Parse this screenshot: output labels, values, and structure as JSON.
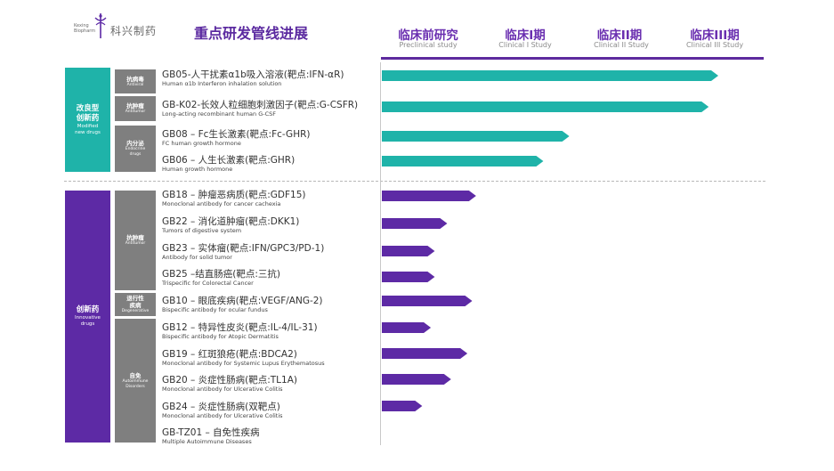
{
  "header": {
    "logo_en_line1": "Kexing",
    "logo_en_line2": "Biopharm",
    "logo_cn": "科兴制药",
    "title": "重点研发管线进展"
  },
  "stages": [
    {
      "cn": "临床前研究",
      "en": "Preclinical study"
    },
    {
      "cn": "临床I期",
      "en": "Clinical I Study"
    },
    {
      "cn": "临床II期",
      "en": "Clinical II Study"
    },
    {
      "cn": "临床III期",
      "en": "Clinical III Study"
    }
  ],
  "groups": {
    "modified": {
      "cn_line1": "改良型",
      "cn_line2": "创新药",
      "en_line1": "Modified",
      "en_line2": "new drugs"
    },
    "innovative": {
      "cn": "创新药",
      "en_line1": "Innovative",
      "en_line2": "drugs"
    }
  },
  "subgroups": {
    "antiviral": {
      "cn": "抗病毒",
      "en": "Antiviral"
    },
    "antitumor1": {
      "cn": "抗肿瘤",
      "en": "Antitumor"
    },
    "endocrine": {
      "cn": "内分泌",
      "en_line1": "Endocrine",
      "en_line2": "drugs"
    },
    "antitumor2": {
      "cn": "抗肿瘤",
      "en": "Antitumor"
    },
    "degenerative": {
      "cn_line1": "退行性",
      "cn_line2": "疾病",
      "en": "Degenerative"
    },
    "autoimmune": {
      "cn": "自免",
      "en_line1": "Autoimmune",
      "en_line2": "Disorders"
    }
  },
  "colors": {
    "modified": "#1fb3a9",
    "innovative": "#5d2aa5"
  },
  "chart_data": {
    "type": "bar",
    "orientation": "horizontal",
    "stages": [
      "临床前研究",
      "临床I期",
      "临床II期",
      "临床III期"
    ],
    "note": "values are pipeline progress in stage units (0 = start of preclinical, 4 = end of Clinical III)",
    "items": [
      {
        "name": "GB05-人干扰素α1b吸入溶液(靶点:IFN-αR)",
        "en": "Human α1b Interferon inhalation solution",
        "group": "modified",
        "progress": 3.5
      },
      {
        "name": "GB-K02-长效人粒细胞刺激因子(靶点:G-CSFR)",
        "en": "Long-acting  recombinant human G-CSF",
        "group": "modified",
        "progress": 3.4
      },
      {
        "name": "GB08 – Fc生长激素(靶点:Fc-GHR)",
        "en": "FC human growth hormone",
        "group": "modified",
        "progress": 1.95
      },
      {
        "name": "GB06 – 人生长激素(靶点:GHR)",
        "en": "Human growth hormone",
        "group": "modified",
        "progress": 1.68
      },
      {
        "name": "GB18 – 肿瘤恶病质(靶点:GDF15)",
        "en": "Monoclonal antibody for cancer cachexia",
        "group": "innovative",
        "progress": 0.98
      },
      {
        "name": "GB22 – 消化道肿瘤(靶点:DKK1)",
        "en": "Tumors of digestive system",
        "group": "innovative",
        "progress": 0.68
      },
      {
        "name": "GB23 – 实体瘤(靶点:IFN/GPC3/PD-1)",
        "en": "Antibody for solid tumor",
        "group": "innovative",
        "progress": 0.55
      },
      {
        "name": "GB25 –结直肠癌(靶点:三抗)",
        "en": "Trispecific for Colorectal Cancer",
        "group": "innovative",
        "progress": 0.55
      },
      {
        "name": "GB10 – 眼底疾病(靶点:VEGF/ANG-2)",
        "en": "Bispecific antibody for ocular fundus",
        "group": "innovative",
        "progress": 0.94
      },
      {
        "name": "GB12 – 特异性皮炎(靶点:IL-4/IL-31)",
        "en": "Bispecific antibody for Atopic Dermatitis",
        "group": "innovative",
        "progress": 0.51
      },
      {
        "name": "GB19 – 红斑狼疮(靶点:BDCA2)",
        "en": "Monoclonal antibody for Systemic Lupus Erythematosus",
        "group": "innovative",
        "progress": 0.89
      },
      {
        "name": "GB20 – 炎症性肠病(靶点:TL1A)",
        "en": "Monoclonal antibody for Ulcerative Colitis",
        "group": "innovative",
        "progress": 0.72
      },
      {
        "name": "GB24 – 炎症性肠病(双靶点)",
        "en": "Monoclonal antibody for Ulcerative Colitis",
        "group": "innovative",
        "progress": 0.42
      },
      {
        "name": "GB-TZ01 – 自免性疾病",
        "en": "Multiple Autoimmune Diseases",
        "group": "innovative",
        "progress": 0.0
      }
    ]
  }
}
